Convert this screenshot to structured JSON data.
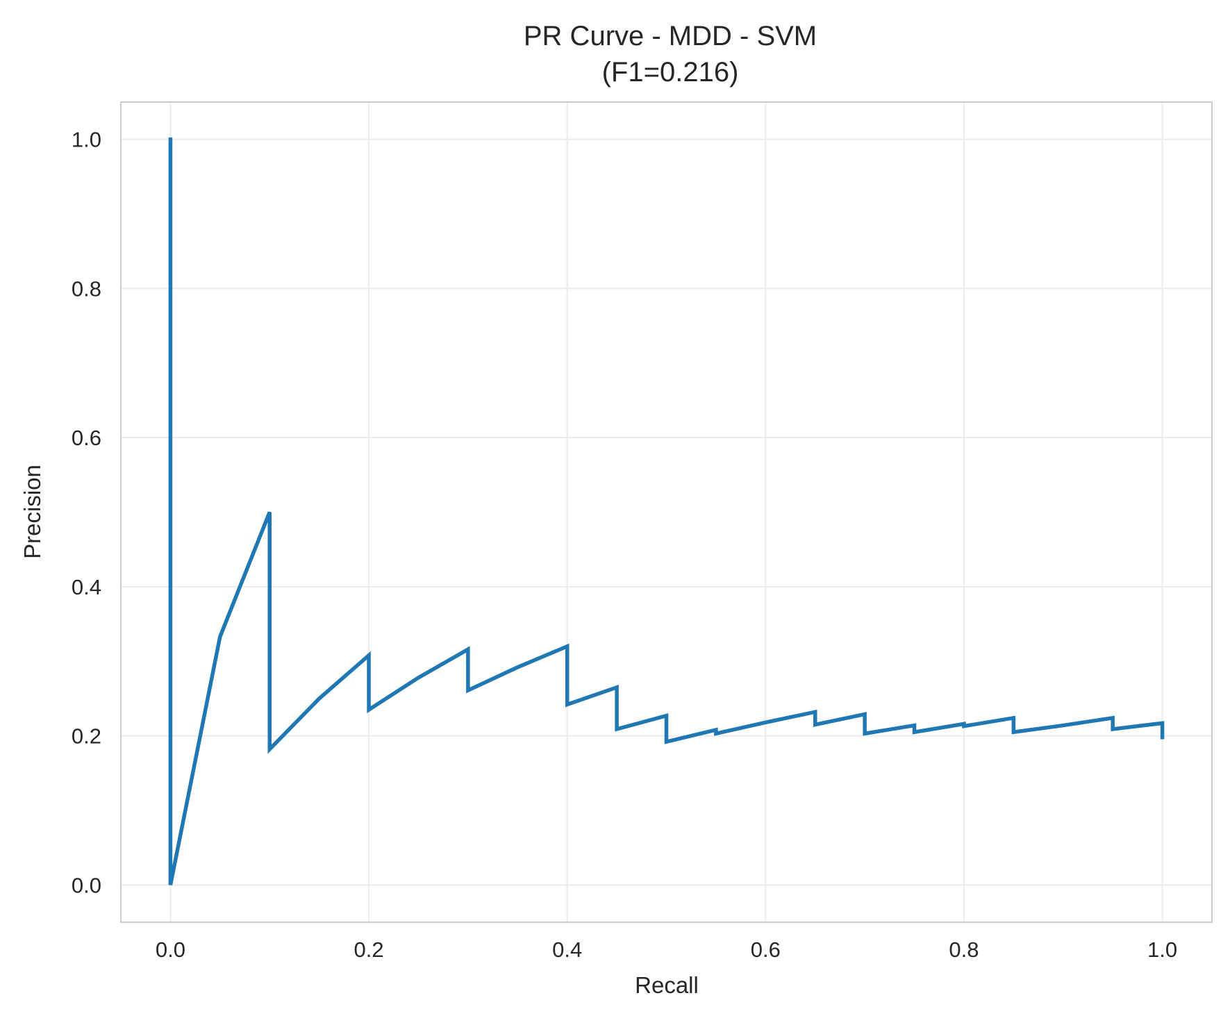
{
  "chart_data": {
    "type": "line",
    "title": "PR Curve - MDD - SVM",
    "subtitle": "(F1=0.216)",
    "xlabel": "Recall",
    "ylabel": "Precision",
    "xlim": [
      -0.05,
      1.05
    ],
    "ylim": [
      -0.05,
      1.05
    ],
    "xticks": [
      0.0,
      0.2,
      0.4,
      0.6,
      0.8,
      1.0
    ],
    "xtick_labels": [
      "0.0",
      "0.2",
      "0.4",
      "0.6",
      "0.8",
      "1.0"
    ],
    "yticks": [
      0.0,
      0.2,
      0.4,
      0.6,
      0.8,
      1.0
    ],
    "ytick_labels": [
      "0.0",
      "0.2",
      "0.4",
      "0.6",
      "0.8",
      "1.0"
    ],
    "grid": true,
    "legend": "none",
    "colors": {
      "line": "#1f77b4",
      "grid": "#ebebeb",
      "frame": "#cccccc"
    },
    "series": [
      {
        "x": [
          0.0,
          0.0,
          0.05,
          0.1,
          0.1,
          0.15,
          0.2,
          0.2,
          0.25,
          0.3,
          0.3,
          0.35,
          0.4,
          0.4,
          0.45,
          0.45,
          0.5,
          0.5,
          0.55,
          0.55,
          0.6,
          0.65,
          0.65,
          0.7,
          0.7,
          0.75,
          0.75,
          0.8,
          0.8,
          0.85,
          0.85,
          0.9,
          0.95,
          0.95,
          1.0,
          1.0
        ],
        "y": [
          1.0,
          0.0,
          0.333,
          0.5,
          0.182,
          0.25,
          0.308,
          0.235,
          0.278,
          0.316,
          0.261,
          0.292,
          0.32,
          0.242,
          0.265,
          0.209,
          0.227,
          0.192,
          0.208,
          0.203,
          0.218,
          0.232,
          0.215,
          0.229,
          0.203,
          0.214,
          0.205,
          0.216,
          0.213,
          0.224,
          0.205,
          0.214,
          0.224,
          0.209,
          0.217,
          0.198
        ]
      }
    ]
  }
}
